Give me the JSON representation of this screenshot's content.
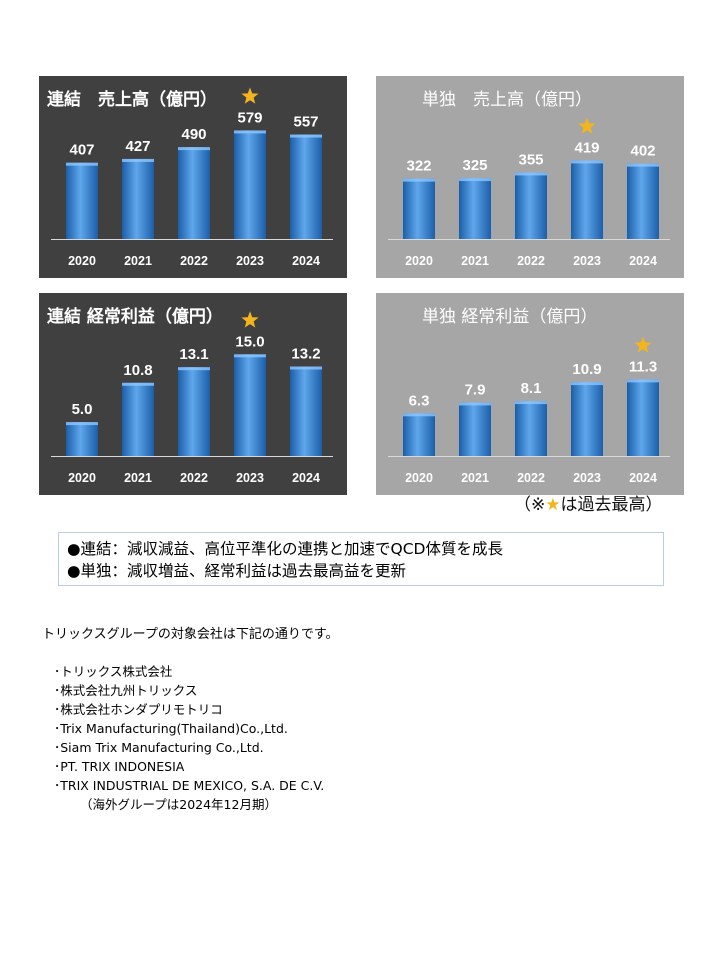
{
  "colors": {
    "dark_panel": "#404040",
    "light_panel": "#a6a6a6",
    "bar_top": "#5fa6ec",
    "bar_bottom": "#1a5fa8",
    "star": "#f3b51d"
  },
  "chart_data": [
    {
      "id": "cons-sales",
      "type": "bar",
      "title": "連結　売上高（億円）",
      "categories": [
        "2020",
        "2021",
        "2022",
        "2023",
        "2024"
      ],
      "values": [
        407,
        427,
        490,
        579,
        557
      ],
      "labels": [
        "407",
        "427",
        "490",
        "579",
        "557"
      ],
      "ylim": [
        0,
        640
      ],
      "record_index": 3,
      "theme": "dark"
    },
    {
      "id": "single-sales",
      "type": "bar",
      "title": "単独　売上高（億円）",
      "categories": [
        "2020",
        "2021",
        "2022",
        "2023",
        "2024"
      ],
      "values": [
        322,
        325,
        355,
        419,
        402
      ],
      "labels": [
        "322",
        "325",
        "355",
        "419",
        "402"
      ],
      "ylim": [
        0,
        640
      ],
      "record_index": 3,
      "theme": "light"
    },
    {
      "id": "cons-profit",
      "type": "bar",
      "title": "連結 経常利益（億円）",
      "categories": [
        "2020",
        "2021",
        "2022",
        "2023",
        "2024"
      ],
      "values": [
        5.0,
        10.8,
        13.1,
        15.0,
        13.2
      ],
      "labels": [
        "5.0",
        "10.8",
        "13.1",
        "15.0",
        "13.2"
      ],
      "ylim": [
        0,
        17.7
      ],
      "record_index": 3,
      "theme": "dark"
    },
    {
      "id": "single-profit",
      "type": "bar",
      "title": "単独 経常利益（億円）",
      "categories": [
        "2020",
        "2021",
        "2022",
        "2023",
        "2024"
      ],
      "values": [
        6.3,
        7.9,
        8.1,
        10.9,
        11.3
      ],
      "labels": [
        "6.3",
        "7.9",
        "8.1",
        "10.9",
        "11.3"
      ],
      "ylim": [
        0,
        17.7
      ],
      "record_index": 4,
      "theme": "light"
    }
  ],
  "note": {
    "prefix": "（※",
    "star": "★",
    "suffix": "は過去最高）"
  },
  "summary": [
    "●連結：減収減益、高位平準化の連携と加速でQCD体質を成長",
    "●単独：減収増益、経常利益は過去最高益を更新"
  ],
  "intro": "トリックスグループの対象会社は下記の通りです。",
  "companies": [
    "･トリックス株式会社",
    "･株式会社九州トリックス",
    "･株式会社ホンダプリモトリコ",
    "･Trix Manufacturing(Thailand)Co.,Ltd.",
    "･Siam Trix Manufacturing Co.,Ltd.",
    "･PT. TRIX INDONESIA",
    "･TRIX INDUSTRIAL DE MEXICO, S.A. DE C.V."
  ],
  "companies_note": "（海外グループは2024年12月期）"
}
